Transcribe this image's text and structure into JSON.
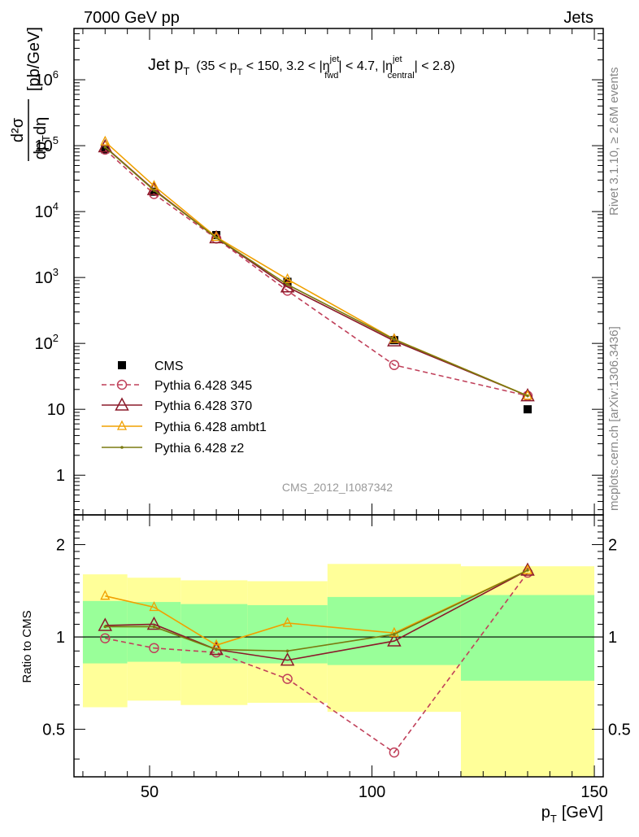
{
  "header": {
    "left": "7000 GeV pp",
    "right": "Jets"
  },
  "side_text": {
    "rivet": "Rivet 3.1.10, ≥ 2.6M events",
    "mcplots": "mcplots.cern.ch [arXiv:1306.3436]"
  },
  "watermark": "CMS_2012_I1087342",
  "colors": {
    "cms": "#000000",
    "p345": "#c0405a",
    "p370": "#8b1a2a",
    "ambt1": "#f0a000",
    "z2": "#7a7a10",
    "band_inner": "#99ff99",
    "band_outer": "#ffff99"
  },
  "chart_data": [
    {
      "type": "line",
      "title": "Jet p_T (35 < p_T < 150, 3.2 < |η_fwd^jet| < 4.7, |η_central^jet| < 2.8)",
      "title_parts": {
        "main": "Jet p",
        "main_sub": "T",
        "cond_a": "(35 < p",
        "cond_a_sub": "T",
        "cond_b": " < 150, 3.2 < |η",
        "eta_sup": "jet",
        "fwd_sub": "fwd",
        "cond_c": "| < 4.7, |η",
        "central_sub": "central",
        "cond_d": "| < 2.8)"
      },
      "ylabel_parts": {
        "num": "d²σ",
        "den": "dp",
        "den_sub": "T",
        "den_tail": "dη",
        "units": "[pb/GeV]"
      },
      "yscale": "log",
      "ylim": [
        0.25,
        6000000
      ],
      "xlim": [
        33,
        152
      ],
      "yticks": [
        {
          "value": 1,
          "label": "1"
        },
        {
          "value": 10,
          "label": "10"
        },
        {
          "value": 100,
          "label": "10",
          "exp": "2"
        },
        {
          "value": 1000,
          "label": "10",
          "exp": "3"
        },
        {
          "value": 10000,
          "label": "10",
          "exp": "4"
        },
        {
          "value": 100000,
          "label": "10",
          "exp": "5"
        },
        {
          "value": 1000000,
          "label": "10",
          "exp": "6"
        }
      ],
      "legend": {
        "position": "center-left",
        "entries": [
          "CMS",
          "Pythia 6.428 345",
          "Pythia 6.428 370",
          "Pythia 6.428 ambt1",
          "Pythia 6.428 z2"
        ]
      },
      "series": [
        {
          "name": "CMS",
          "style": "square",
          "x": [
            40,
            51,
            65,
            81,
            105,
            135
          ],
          "y": [
            88000,
            20000,
            4400,
            860,
            112,
            10
          ]
        },
        {
          "name": "Pythia 6.428 345",
          "style": "circle-dashed",
          "x": [
            40,
            51,
            65,
            81,
            105,
            135
          ],
          "y": [
            87000,
            18500,
            3900,
            630,
            47,
            16
          ]
        },
        {
          "name": "Pythia 6.428 370",
          "style": "triangle-large",
          "x": [
            40,
            51,
            65,
            81,
            105,
            135
          ],
          "y": [
            96000,
            21500,
            4000,
            720,
            109,
            16
          ]
        },
        {
          "name": "Pythia 6.428 ambt1",
          "style": "triangle-small",
          "x": [
            40,
            51,
            65,
            81,
            105,
            135
          ],
          "y": [
            115000,
            24500,
            4100,
            940,
            116,
            16
          ]
        },
        {
          "name": "Pythia 6.428 z2",
          "style": "dot",
          "x": [
            40,
            51,
            65,
            81,
            105,
            135
          ],
          "y": [
            95000,
            21000,
            4000,
            780,
            115,
            16
          ]
        }
      ]
    },
    {
      "type": "line",
      "ylabel": "Ratio to CMS",
      "xlabel": "p_T [GeV]",
      "xlabel_parts": {
        "main": "p",
        "sub": "T",
        "units": "[GeV]"
      },
      "yscale": "log",
      "ylim": [
        0.35,
        2.5
      ],
      "xlim": [
        33,
        152
      ],
      "xticks": [
        50,
        100,
        150
      ],
      "yticks": [
        0.5,
        1,
        2
      ],
      "reference_line": 1,
      "bands": {
        "x_edges": [
          35,
          45,
          57,
          72,
          90,
          120,
          150
        ],
        "inner_low": [
          0.82,
          0.83,
          0.82,
          0.82,
          0.81,
          0.72
        ],
        "inner_high": [
          1.31,
          1.3,
          1.28,
          1.27,
          1.35,
          1.37
        ],
        "outer_low": [
          0.59,
          0.62,
          0.6,
          0.61,
          0.57,
          0.3
        ],
        "outer_high": [
          1.6,
          1.56,
          1.53,
          1.52,
          1.73,
          1.7
        ]
      },
      "series": [
        {
          "name": "Pythia 6.428 345",
          "x": [
            40,
            51,
            65,
            81,
            105,
            135
          ],
          "y": [
            0.99,
            0.92,
            0.89,
            0.73,
            0.42,
            1.62
          ]
        },
        {
          "name": "Pythia 6.428 370",
          "x": [
            40,
            51,
            65,
            81,
            105,
            135
          ],
          "y": [
            1.09,
            1.1,
            0.91,
            0.84,
            0.97,
            1.65
          ]
        },
        {
          "name": "Pythia 6.428 ambt1",
          "x": [
            40,
            51,
            65,
            81,
            105,
            135
          ],
          "y": [
            1.36,
            1.25,
            0.94,
            1.11,
            1.03,
            1.65
          ]
        },
        {
          "name": "Pythia 6.428 z2",
          "x": [
            40,
            51,
            65,
            81,
            105,
            135
          ],
          "y": [
            1.08,
            1.08,
            0.91,
            0.9,
            1.02,
            1.65
          ]
        }
      ]
    }
  ]
}
